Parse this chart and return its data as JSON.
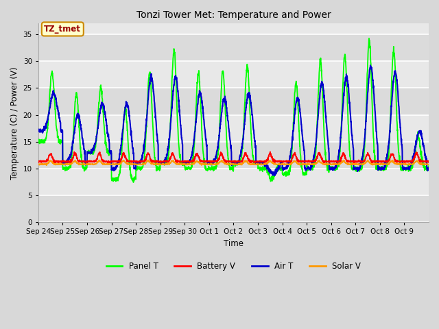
{
  "title": "Tonzi Tower Met: Temperature and Power",
  "xlabel": "Time",
  "ylabel": "Temperature (C) / Power (V)",
  "ylim": [
    0,
    37
  ],
  "yticks": [
    0,
    5,
    10,
    15,
    20,
    25,
    30,
    35
  ],
  "annotation_text": "TZ_tmet",
  "annotation_bg": "#ffffcc",
  "annotation_border": "#cc8800",
  "annotation_text_color": "#990000",
  "bg_outer": "#d8d8d8",
  "bg_plot": "#e8e8e8",
  "grid_color": "#ffffff",
  "legend_labels": [
    "Panel T",
    "Battery V",
    "Air T",
    "Solar V"
  ],
  "legend_colors": [
    "#00ff00",
    "#ff0000",
    "#0000cc",
    "#ff9900"
  ],
  "x_tick_labels": [
    "Sep 24",
    "Sep 25",
    "Sep 26",
    "Sep 27",
    "Sep 28",
    "Sep 29",
    "Sep 30",
    "Oct 1",
    "Oct 2",
    "Oct 3",
    "Oct 4",
    "Oct 5",
    "Oct 6",
    "Oct 7",
    "Oct 8",
    "Oct 9"
  ],
  "num_days": 16,
  "panel_peaks": [
    28,
    24,
    25,
    21,
    28,
    32,
    28,
    28,
    29,
    8,
    26,
    30,
    31,
    34,
    32,
    16
  ],
  "air_peaks": [
    24,
    20,
    22,
    22,
    27,
    27,
    24,
    23,
    24,
    9,
    23,
    26,
    27,
    29,
    28,
    17
  ],
  "panel_night": [
    15,
    10,
    13,
    8,
    10,
    11,
    10,
    10,
    11,
    10,
    9,
    10,
    10,
    10,
    10,
    10
  ],
  "air_night": [
    17,
    11,
    13,
    10,
    11,
    11,
    11,
    11,
    11,
    11,
    10,
    10,
    10,
    10,
    10,
    10
  ]
}
